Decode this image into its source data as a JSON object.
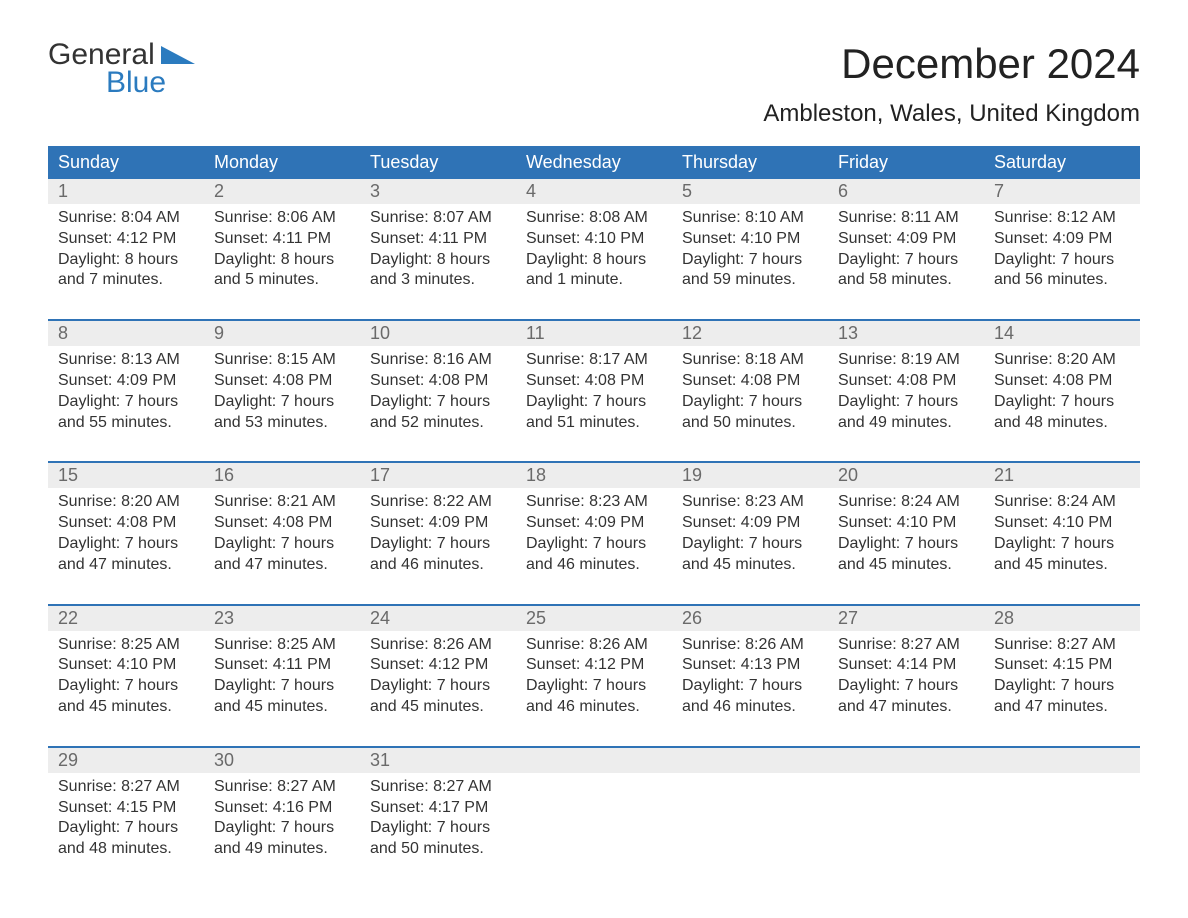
{
  "brand": {
    "line1": "General",
    "line2": "Blue",
    "accent": "#2b7bbf"
  },
  "title": "December 2024",
  "location": "Ambleston, Wales, United Kingdom",
  "colors": {
    "header_bg": "#2f73b6",
    "header_text": "#ffffff",
    "daynum_bg": "#ededed",
    "daynum_text": "#6a6a6a",
    "body_text": "#333333",
    "page_bg": "#ffffff",
    "rule": "#2f73b6"
  },
  "typography": {
    "title_fontsize": 42,
    "location_fontsize": 24,
    "weekday_fontsize": 18,
    "daynum_fontsize": 18,
    "body_fontsize": 16,
    "logo_fontsize": 30
  },
  "layout": {
    "columns": 7,
    "weeks": 5
  },
  "weekdays": [
    "Sunday",
    "Monday",
    "Tuesday",
    "Wednesday",
    "Thursday",
    "Friday",
    "Saturday"
  ],
  "days": [
    {
      "n": "1",
      "sunrise": "Sunrise: 8:04 AM",
      "sunset": "Sunset: 4:12 PM",
      "d1": "Daylight: 8 hours",
      "d2": "and 7 minutes."
    },
    {
      "n": "2",
      "sunrise": "Sunrise: 8:06 AM",
      "sunset": "Sunset: 4:11 PM",
      "d1": "Daylight: 8 hours",
      "d2": "and 5 minutes."
    },
    {
      "n": "3",
      "sunrise": "Sunrise: 8:07 AM",
      "sunset": "Sunset: 4:11 PM",
      "d1": "Daylight: 8 hours",
      "d2": "and 3 minutes."
    },
    {
      "n": "4",
      "sunrise": "Sunrise: 8:08 AM",
      "sunset": "Sunset: 4:10 PM",
      "d1": "Daylight: 8 hours",
      "d2": "and 1 minute."
    },
    {
      "n": "5",
      "sunrise": "Sunrise: 8:10 AM",
      "sunset": "Sunset: 4:10 PM",
      "d1": "Daylight: 7 hours",
      "d2": "and 59 minutes."
    },
    {
      "n": "6",
      "sunrise": "Sunrise: 8:11 AM",
      "sunset": "Sunset: 4:09 PM",
      "d1": "Daylight: 7 hours",
      "d2": "and 58 minutes."
    },
    {
      "n": "7",
      "sunrise": "Sunrise: 8:12 AM",
      "sunset": "Sunset: 4:09 PM",
      "d1": "Daylight: 7 hours",
      "d2": "and 56 minutes."
    },
    {
      "n": "8",
      "sunrise": "Sunrise: 8:13 AM",
      "sunset": "Sunset: 4:09 PM",
      "d1": "Daylight: 7 hours",
      "d2": "and 55 minutes."
    },
    {
      "n": "9",
      "sunrise": "Sunrise: 8:15 AM",
      "sunset": "Sunset: 4:08 PM",
      "d1": "Daylight: 7 hours",
      "d2": "and 53 minutes."
    },
    {
      "n": "10",
      "sunrise": "Sunrise: 8:16 AM",
      "sunset": "Sunset: 4:08 PM",
      "d1": "Daylight: 7 hours",
      "d2": "and 52 minutes."
    },
    {
      "n": "11",
      "sunrise": "Sunrise: 8:17 AM",
      "sunset": "Sunset: 4:08 PM",
      "d1": "Daylight: 7 hours",
      "d2": "and 51 minutes."
    },
    {
      "n": "12",
      "sunrise": "Sunrise: 8:18 AM",
      "sunset": "Sunset: 4:08 PM",
      "d1": "Daylight: 7 hours",
      "d2": "and 50 minutes."
    },
    {
      "n": "13",
      "sunrise": "Sunrise: 8:19 AM",
      "sunset": "Sunset: 4:08 PM",
      "d1": "Daylight: 7 hours",
      "d2": "and 49 minutes."
    },
    {
      "n": "14",
      "sunrise": "Sunrise: 8:20 AM",
      "sunset": "Sunset: 4:08 PM",
      "d1": "Daylight: 7 hours",
      "d2": "and 48 minutes."
    },
    {
      "n": "15",
      "sunrise": "Sunrise: 8:20 AM",
      "sunset": "Sunset: 4:08 PM",
      "d1": "Daylight: 7 hours",
      "d2": "and 47 minutes."
    },
    {
      "n": "16",
      "sunrise": "Sunrise: 8:21 AM",
      "sunset": "Sunset: 4:08 PM",
      "d1": "Daylight: 7 hours",
      "d2": "and 47 minutes."
    },
    {
      "n": "17",
      "sunrise": "Sunrise: 8:22 AM",
      "sunset": "Sunset: 4:09 PM",
      "d1": "Daylight: 7 hours",
      "d2": "and 46 minutes."
    },
    {
      "n": "18",
      "sunrise": "Sunrise: 8:23 AM",
      "sunset": "Sunset: 4:09 PM",
      "d1": "Daylight: 7 hours",
      "d2": "and 46 minutes."
    },
    {
      "n": "19",
      "sunrise": "Sunrise: 8:23 AM",
      "sunset": "Sunset: 4:09 PM",
      "d1": "Daylight: 7 hours",
      "d2": "and 45 minutes."
    },
    {
      "n": "20",
      "sunrise": "Sunrise: 8:24 AM",
      "sunset": "Sunset: 4:10 PM",
      "d1": "Daylight: 7 hours",
      "d2": "and 45 minutes."
    },
    {
      "n": "21",
      "sunrise": "Sunrise: 8:24 AM",
      "sunset": "Sunset: 4:10 PM",
      "d1": "Daylight: 7 hours",
      "d2": "and 45 minutes."
    },
    {
      "n": "22",
      "sunrise": "Sunrise: 8:25 AM",
      "sunset": "Sunset: 4:10 PM",
      "d1": "Daylight: 7 hours",
      "d2": "and 45 minutes."
    },
    {
      "n": "23",
      "sunrise": "Sunrise: 8:25 AM",
      "sunset": "Sunset: 4:11 PM",
      "d1": "Daylight: 7 hours",
      "d2": "and 45 minutes."
    },
    {
      "n": "24",
      "sunrise": "Sunrise: 8:26 AM",
      "sunset": "Sunset: 4:12 PM",
      "d1": "Daylight: 7 hours",
      "d2": "and 45 minutes."
    },
    {
      "n": "25",
      "sunrise": "Sunrise: 8:26 AM",
      "sunset": "Sunset: 4:12 PM",
      "d1": "Daylight: 7 hours",
      "d2": "and 46 minutes."
    },
    {
      "n": "26",
      "sunrise": "Sunrise: 8:26 AM",
      "sunset": "Sunset: 4:13 PM",
      "d1": "Daylight: 7 hours",
      "d2": "and 46 minutes."
    },
    {
      "n": "27",
      "sunrise": "Sunrise: 8:27 AM",
      "sunset": "Sunset: 4:14 PM",
      "d1": "Daylight: 7 hours",
      "d2": "and 47 minutes."
    },
    {
      "n": "28",
      "sunrise": "Sunrise: 8:27 AM",
      "sunset": "Sunset: 4:15 PM",
      "d1": "Daylight: 7 hours",
      "d2": "and 47 minutes."
    },
    {
      "n": "29",
      "sunrise": "Sunrise: 8:27 AM",
      "sunset": "Sunset: 4:15 PM",
      "d1": "Daylight: 7 hours",
      "d2": "and 48 minutes."
    },
    {
      "n": "30",
      "sunrise": "Sunrise: 8:27 AM",
      "sunset": "Sunset: 4:16 PM",
      "d1": "Daylight: 7 hours",
      "d2": "and 49 minutes."
    },
    {
      "n": "31",
      "sunrise": "Sunrise: 8:27 AM",
      "sunset": "Sunset: 4:17 PM",
      "d1": "Daylight: 7 hours",
      "d2": "and 50 minutes."
    }
  ]
}
